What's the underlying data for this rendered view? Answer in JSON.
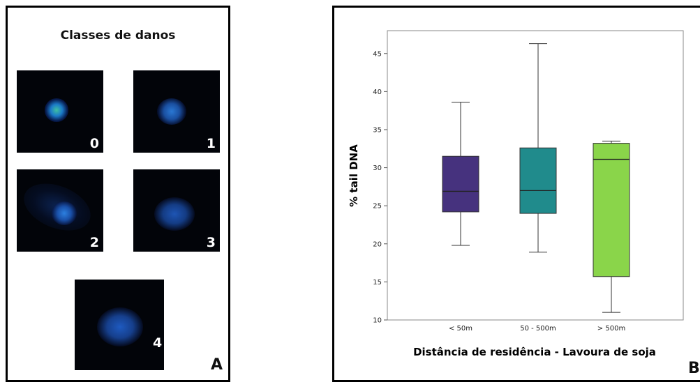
{
  "panel_a": {
    "title": "Classes de danos",
    "letter": "A",
    "cells": [
      {
        "label": "0"
      },
      {
        "label": "1"
      },
      {
        "label": "2"
      },
      {
        "label": "3"
      },
      {
        "label": "4"
      }
    ]
  },
  "panel_b": {
    "letter": "B"
  },
  "chart_data": {
    "type": "box",
    "xlabel": "Distância de residência - Lavoura de soja",
    "ylabel": "% tail DNA",
    "ylim": [
      10,
      48
    ],
    "yticks": [
      10,
      15,
      20,
      25,
      30,
      35,
      40,
      45
    ],
    "categories": [
      "< 50m",
      "50 - 500m",
      "> 500m"
    ],
    "boxes": [
      {
        "category": "< 50m",
        "min": 19.8,
        "q1": 24.2,
        "median": 26.9,
        "q3": 31.5,
        "max": 38.6,
        "color": "#46327e"
      },
      {
        "category": "50 - 500m",
        "min": 18.9,
        "q1": 24.0,
        "median": 27.0,
        "q3": 32.6,
        "max": 46.3,
        "color": "#208b8c"
      },
      {
        "category": "> 500m",
        "min": 11.0,
        "q1": 15.7,
        "median": 31.1,
        "q3": 33.2,
        "max": 33.5,
        "color": "#8ad54a"
      }
    ],
    "grid": false
  }
}
